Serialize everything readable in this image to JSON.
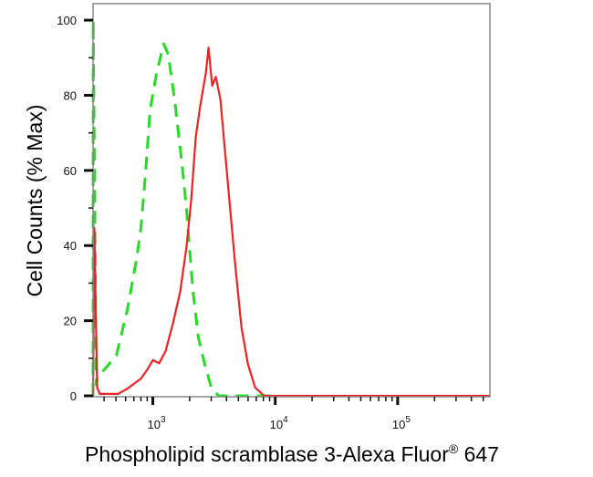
{
  "chart_data": {
    "type": "line",
    "title": "",
    "xlabel": "Phospholipid scramblase 3-Alexa Fluor",
    "xlabel_superscript": "®",
    "xlabel_suffix": " 647",
    "ylabel": "Cell Counts (% Max)",
    "x_scale": "log",
    "xlim": [
      325,
      567000
    ],
    "ylim": [
      0,
      104.4
    ],
    "x_ticks": [
      {
        "value": 1000,
        "base": "10",
        "exp": "3"
      },
      {
        "value": 10000,
        "base": "10",
        "exp": "4"
      },
      {
        "value": 100000,
        "base": "10",
        "exp": "5"
      }
    ],
    "y_ticks": [
      0,
      20,
      40,
      60,
      80,
      100
    ],
    "grid": false,
    "series": [
      {
        "style": "dashed",
        "color": "#22dd22",
        "x": [
          325,
          326,
          345,
          356,
          402,
          503,
          618,
          734,
          800,
          871,
          951,
          1072,
          1229,
          1339,
          1510,
          1733,
          1888,
          1990,
          2130,
          2360,
          2661,
          3005,
          3446,
          9660
        ],
        "y": [
          0,
          100,
          3,
          5.3,
          7,
          10.7,
          22.8,
          36.2,
          44.7,
          59.2,
          76.2,
          85.9,
          93.7,
          90.8,
          78.6,
          61.7,
          49.5,
          39.8,
          27.7,
          15.5,
          8.3,
          2.2,
          0,
          0
        ]
      },
      {
        "style": "solid",
        "color": "#ee2222",
        "x": [
          325,
          333,
          351,
          369,
          520,
          618,
          800,
          902,
          1000,
          1128,
          1272,
          1459,
          1674,
          1888,
          2056,
          2243,
          2443,
          2710,
          2851,
          3055,
          3273,
          3566,
          4093,
          4698,
          5298,
          5976,
          6860,
          8128,
          567000
        ],
        "y": [
          0,
          44.7,
          2.2,
          0.5,
          0.5,
          1.9,
          4.6,
          7.0,
          9.5,
          8.7,
          11.9,
          19.2,
          27.7,
          39.8,
          51.9,
          68.9,
          77.4,
          85.9,
          92.7,
          82.5,
          84.9,
          78.9,
          57.0,
          35.2,
          18.2,
          8.5,
          2.2,
          0,
          0
        ]
      }
    ]
  }
}
